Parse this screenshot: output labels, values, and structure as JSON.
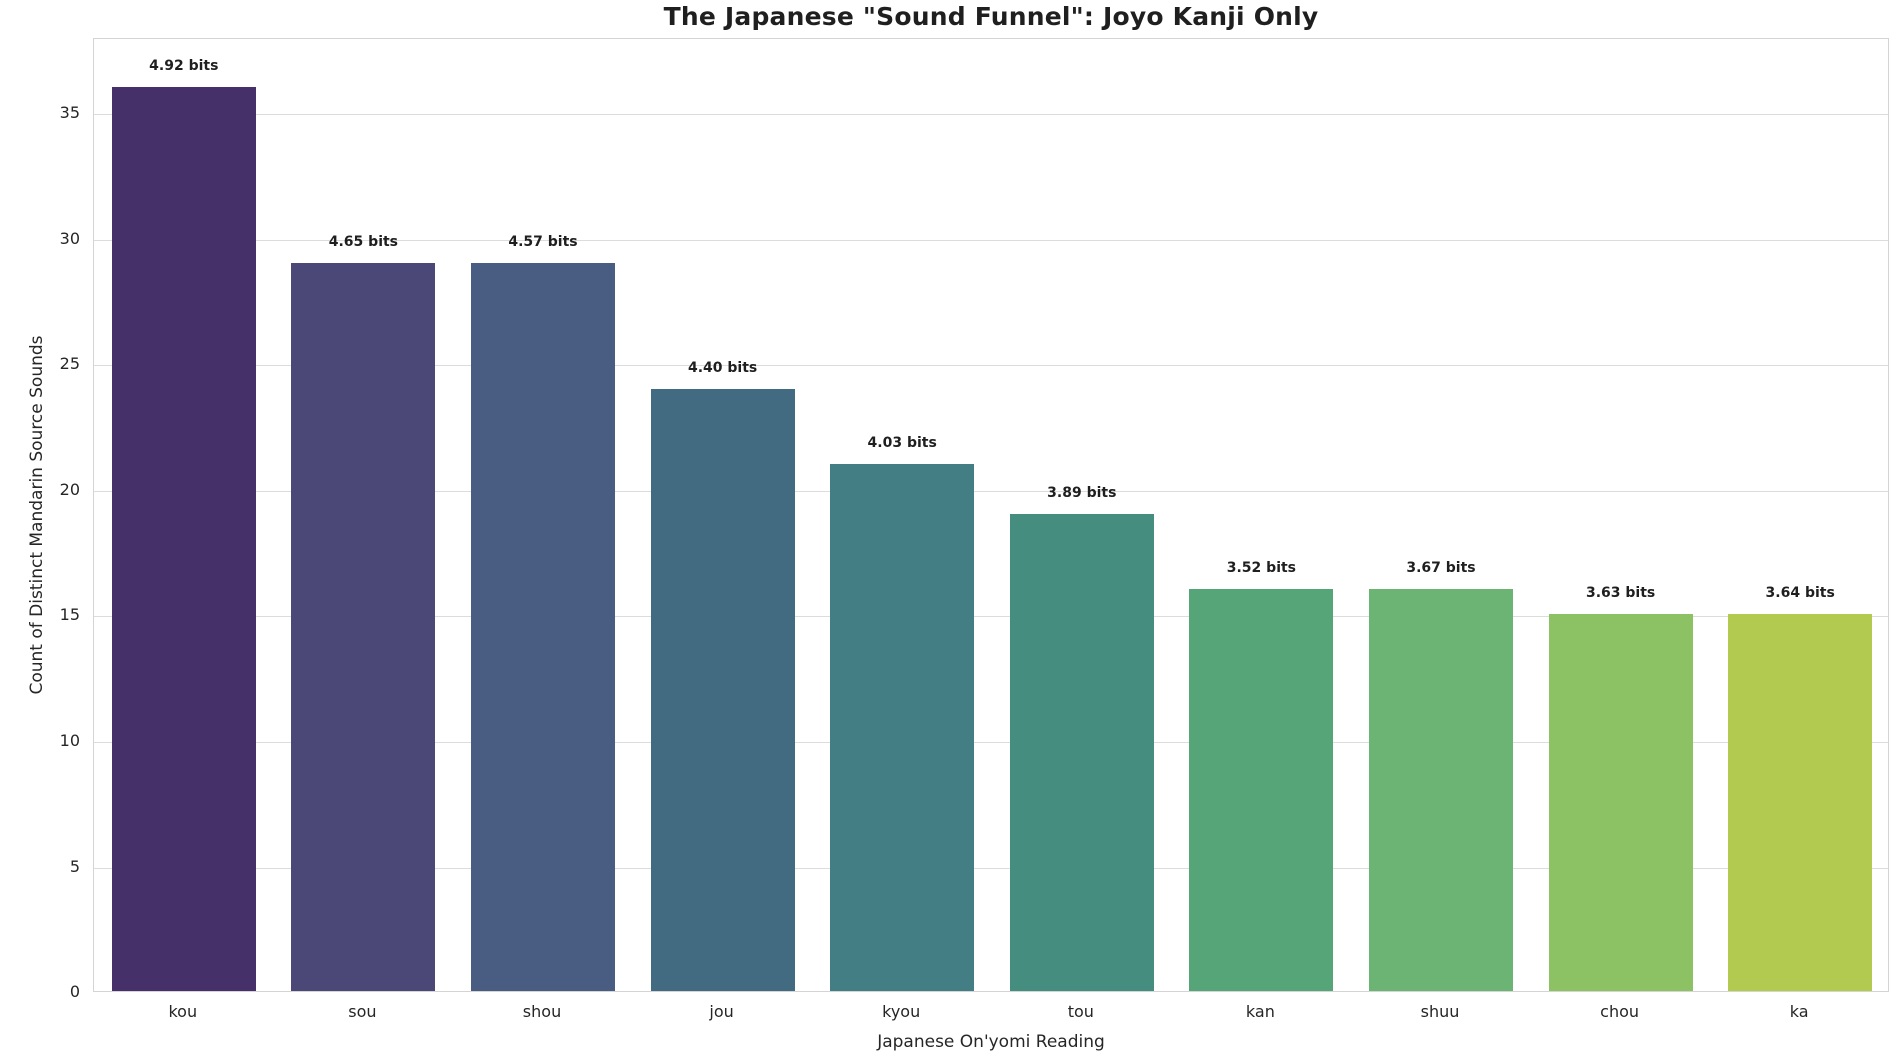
{
  "chart_data": {
    "type": "bar",
    "title": "The Japanese \"Sound Funnel\": Joyo Kanji Only",
    "xlabel": "Japanese On'yomi Reading",
    "ylabel": "Count of Distinct Mandarin Source Sounds",
    "categories": [
      "kou",
      "sou",
      "shou",
      "jou",
      "kyou",
      "tou",
      "kan",
      "shuu",
      "chou",
      "ka"
    ],
    "values": [
      36,
      29,
      29,
      24,
      21,
      19,
      16,
      16,
      15,
      15
    ],
    "bar_labels": [
      "4.92 bits",
      "4.65 bits",
      "4.57 bits",
      "4.40 bits",
      "4.03 bits",
      "3.89 bits",
      "3.52 bits",
      "3.67 bits",
      "3.63 bits",
      "3.64 bits"
    ],
    "bar_colors": [
      "#46306a",
      "#4b4878",
      "#495d83",
      "#426a80",
      "#427e83",
      "#458d7e",
      "#55a578",
      "#6bb473",
      "#8cc263",
      "#b3ca50"
    ],
    "ylim": [
      0,
      38
    ],
    "yticks": [
      0,
      5,
      10,
      15,
      20,
      25,
      30,
      35
    ],
    "grid": true,
    "legend": null,
    "colors": {
      "grid": "#dcdcdc",
      "spine": "#d4d4d4",
      "text": "#262626",
      "title_text": "#1f1f1f",
      "background": "#ffffff"
    }
  }
}
